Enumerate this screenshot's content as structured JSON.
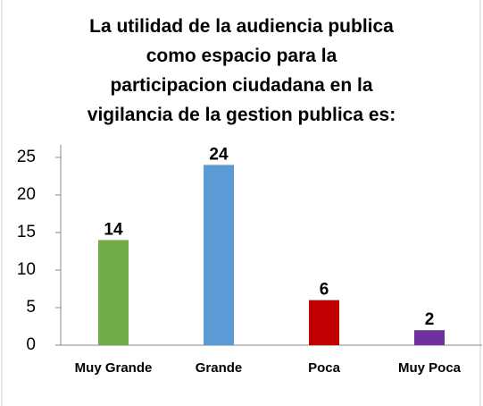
{
  "chart_data": {
    "type": "bar",
    "title": [
      "La utilidad de la audiencia publica",
      "como espacio para la",
      "participacion ciudadana en la",
      "vigilancia de la gestion publica es:"
    ],
    "categories": [
      "Muy Grande",
      "Grande",
      "Poca",
      "Muy Poca"
    ],
    "values": [
      14,
      24,
      6,
      2
    ],
    "colors": [
      "#70ad47",
      "#5b9bd5",
      "#c00000",
      "#7030a0"
    ],
    "ylim": [
      0,
      25
    ],
    "yticks": [
      0,
      5,
      10,
      15,
      20,
      25
    ],
    "grid": false
  }
}
